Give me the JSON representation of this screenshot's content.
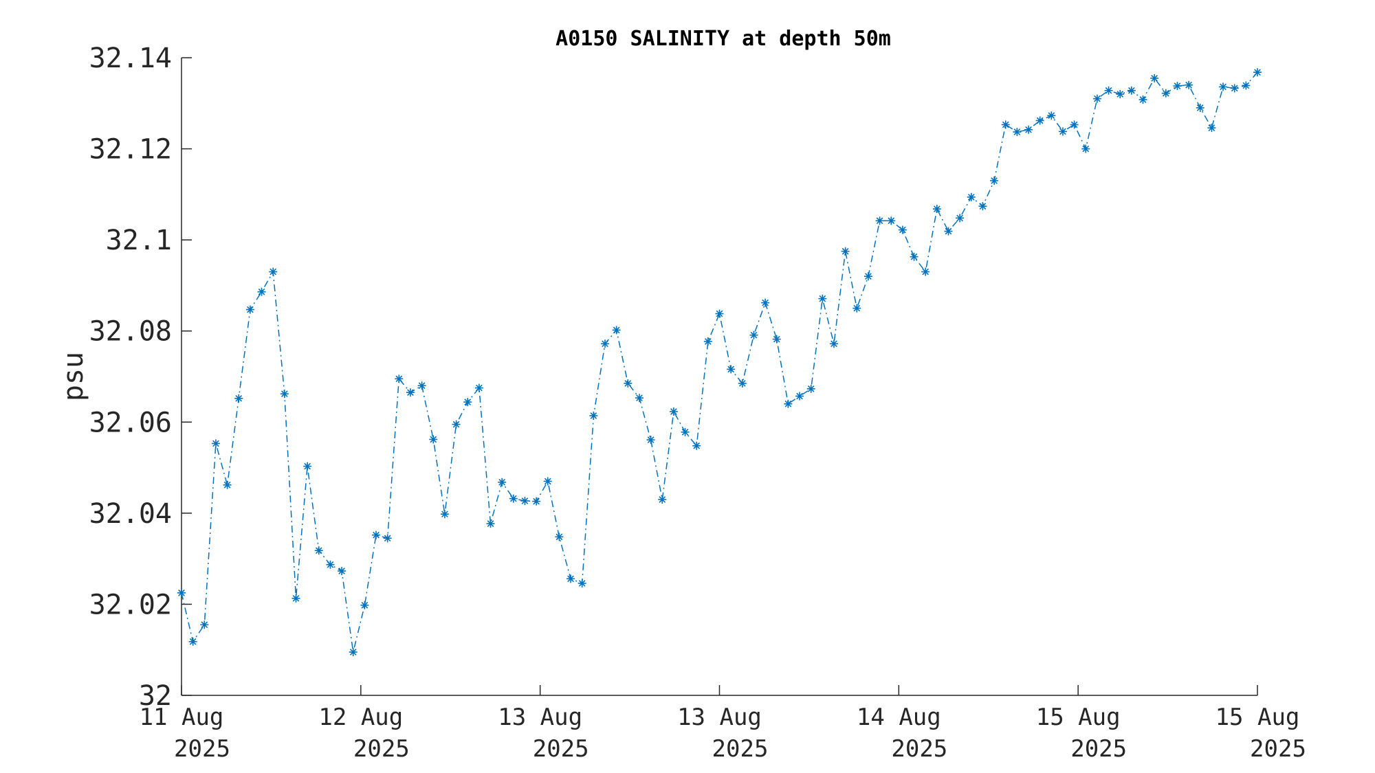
{
  "chart_data": {
    "type": "line",
    "title": "A0150 SALINITY at depth 50m",
    "ylabel": "psu",
    "xlabel": "",
    "ylim": [
      32,
      32.14
    ],
    "yticks": [
      32,
      32.02,
      32.04,
      32.06,
      32.08,
      32.1,
      32.12,
      32.14
    ],
    "ytick_labels": [
      "32",
      "32.02",
      "32.04",
      "32.06",
      "32.08",
      "32.1",
      "32.12",
      "32.14"
    ],
    "xtick_labels": [
      {
        "line1": "11 Aug",
        "line2": "2025"
      },
      {
        "line1": "12 Aug",
        "line2": "2025"
      },
      {
        "line1": "13 Aug",
        "line2": "2025"
      },
      {
        "line1": "13 Aug",
        "line2": "2025"
      },
      {
        "line1": "14 Aug",
        "line2": "2025"
      },
      {
        "line1": "15 Aug",
        "line2": "2025"
      },
      {
        "line1": "15 Aug",
        "line2": "2025"
      }
    ],
    "line_style": "dash-dot",
    "marker": "asterisk",
    "grid": false,
    "series": [
      {
        "color": "#0072BD",
        "values": [
          32.0225,
          32.0118,
          32.0155,
          32.0553,
          32.0462,
          32.0652,
          32.0847,
          32.0886,
          32.093,
          32.0662,
          32.0213,
          32.0503,
          32.0318,
          32.0287,
          32.0273,
          32.0095,
          32.0198,
          32.0352,
          32.0345,
          32.0695,
          32.0665,
          32.068,
          32.0562,
          32.0398,
          32.0595,
          32.0644,
          32.0675,
          32.0377,
          32.0468,
          32.0432,
          32.0427,
          32.0426,
          32.047,
          32.0348,
          32.0256,
          32.0246,
          32.0614,
          32.0772,
          32.0802,
          32.0685,
          32.0653,
          32.0561,
          32.043,
          32.0623,
          32.0578,
          32.0548,
          32.0777,
          32.0838,
          32.0716,
          32.0685,
          32.0791,
          32.0862,
          32.0782,
          32.064,
          32.0657,
          32.0673,
          32.0871,
          32.0772,
          32.0975,
          32.085,
          32.092,
          32.1042,
          32.1042,
          32.1022,
          32.0963,
          32.093,
          32.1068,
          32.1019,
          32.1048,
          32.1094,
          32.1074,
          32.113,
          32.1253,
          32.1237,
          32.1242,
          32.1262,
          32.1273,
          32.1238,
          32.1253,
          32.12,
          32.131,
          32.1328,
          32.132,
          32.1328,
          32.1308,
          32.1355,
          32.1322,
          32.1338,
          32.134,
          32.129,
          32.1246,
          32.1336,
          32.1333,
          32.1339,
          32.1368
        ]
      }
    ]
  }
}
